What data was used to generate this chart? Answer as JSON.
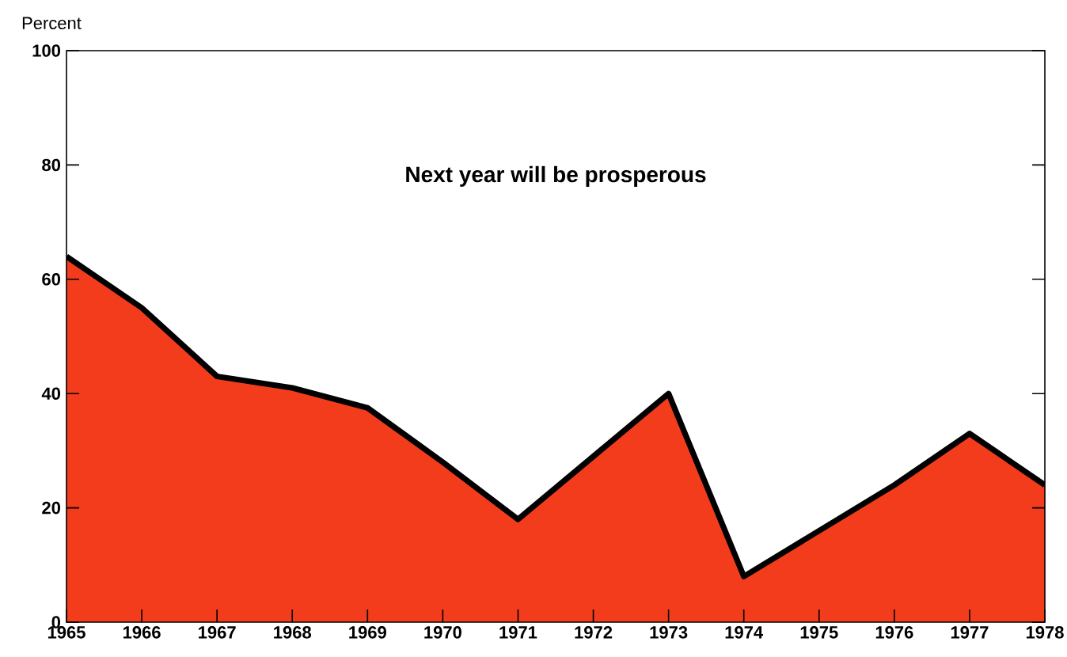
{
  "chart_data": {
    "type": "area",
    "title": "Next year will be prosperous",
    "ylabel": "Percent",
    "x": [
      1965,
      1966,
      1967,
      1968,
      1969,
      1970,
      1971,
      1972,
      1973,
      1974,
      1975,
      1976,
      1977,
      1978
    ],
    "xlim": [
      1965,
      1978
    ],
    "xticks": [
      1965,
      1966,
      1967,
      1968,
      1969,
      1970,
      1971,
      1972,
      1973,
      1974,
      1975,
      1976,
      1977,
      1978
    ],
    "ylim": [
      0,
      100
    ],
    "yticks": [
      0,
      20,
      40,
      60,
      80,
      100
    ],
    "series": [
      {
        "color": "#f23c1c",
        "values": [
          64,
          55,
          43,
          41,
          37.5,
          28,
          18,
          29,
          40,
          8,
          16,
          24,
          33,
          24
        ]
      }
    ],
    "grid": false
  }
}
